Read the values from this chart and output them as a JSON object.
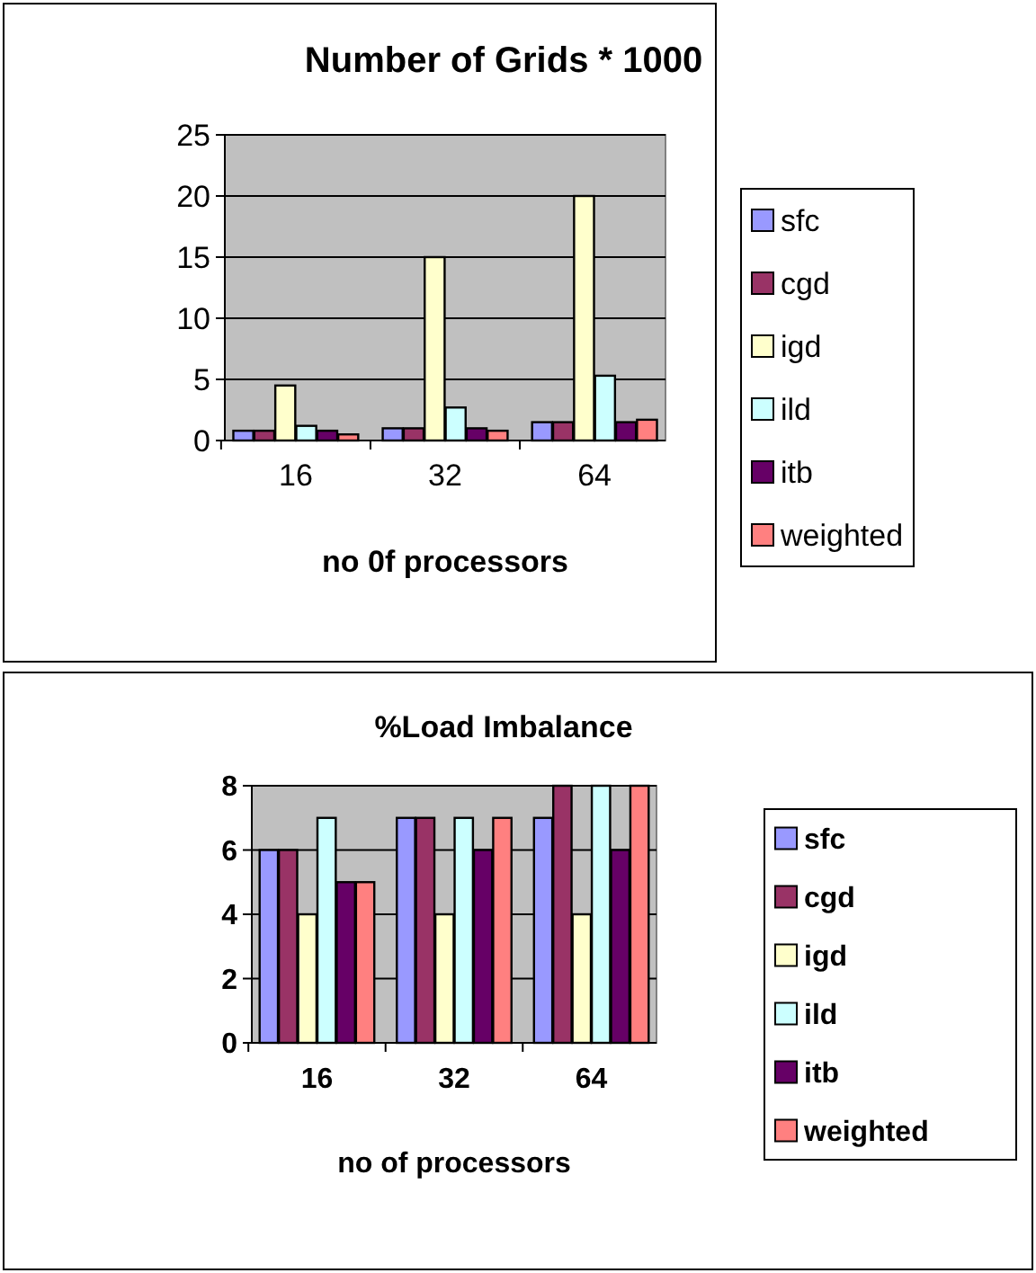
{
  "chart_data": [
    {
      "type": "bar",
      "title": "Number of Grids  * 1000",
      "xlabel": "no 0f processors",
      "categories": [
        "16",
        "32",
        "64"
      ],
      "ylim": [
        0,
        25
      ],
      "yticks": [
        0,
        5,
        10,
        15,
        20,
        25
      ],
      "grid": "y",
      "legend": "right",
      "series": [
        {
          "name": "sfc",
          "color": "#9999ff",
          "values": [
            0.8,
            1,
            1.5
          ]
        },
        {
          "name": "cgd",
          "color": "#993366",
          "values": [
            0.8,
            1,
            1.5
          ]
        },
        {
          "name": "igd",
          "color": "#ffffcc",
          "values": [
            4.5,
            15,
            20
          ]
        },
        {
          "name": "ild",
          "color": "#ccffff",
          "values": [
            1.2,
            2.7,
            5.3
          ]
        },
        {
          "name": "itb",
          "color": "#660066",
          "values": [
            0.8,
            1,
            1.5
          ]
        },
        {
          "name": "weighted",
          "color": "#ff8080",
          "values": [
            0.5,
            0.8,
            1.7
          ]
        }
      ]
    },
    {
      "type": "bar",
      "title": "%Load Imbalance",
      "xlabel": "no of processors",
      "categories": [
        "16",
        "32",
        "64"
      ],
      "ylim": [
        0,
        8
      ],
      "yticks": [
        0,
        2,
        4,
        6,
        8
      ],
      "grid": "y",
      "legend": "right",
      "series": [
        {
          "name": "sfc",
          "color": "#9999ff",
          "values": [
            6,
            7,
            7
          ]
        },
        {
          "name": "cgd",
          "color": "#993366",
          "values": [
            6,
            7,
            8
          ]
        },
        {
          "name": "igd",
          "color": "#ffffcc",
          "values": [
            4,
            4,
            4
          ]
        },
        {
          "name": "ild",
          "color": "#ccffff",
          "values": [
            7,
            7,
            8
          ]
        },
        {
          "name": "itb",
          "color": "#660066",
          "values": [
            5,
            6,
            6
          ]
        },
        {
          "name": "weighted",
          "color": "#ff8080",
          "values": [
            5,
            7,
            8
          ]
        }
      ]
    }
  ]
}
